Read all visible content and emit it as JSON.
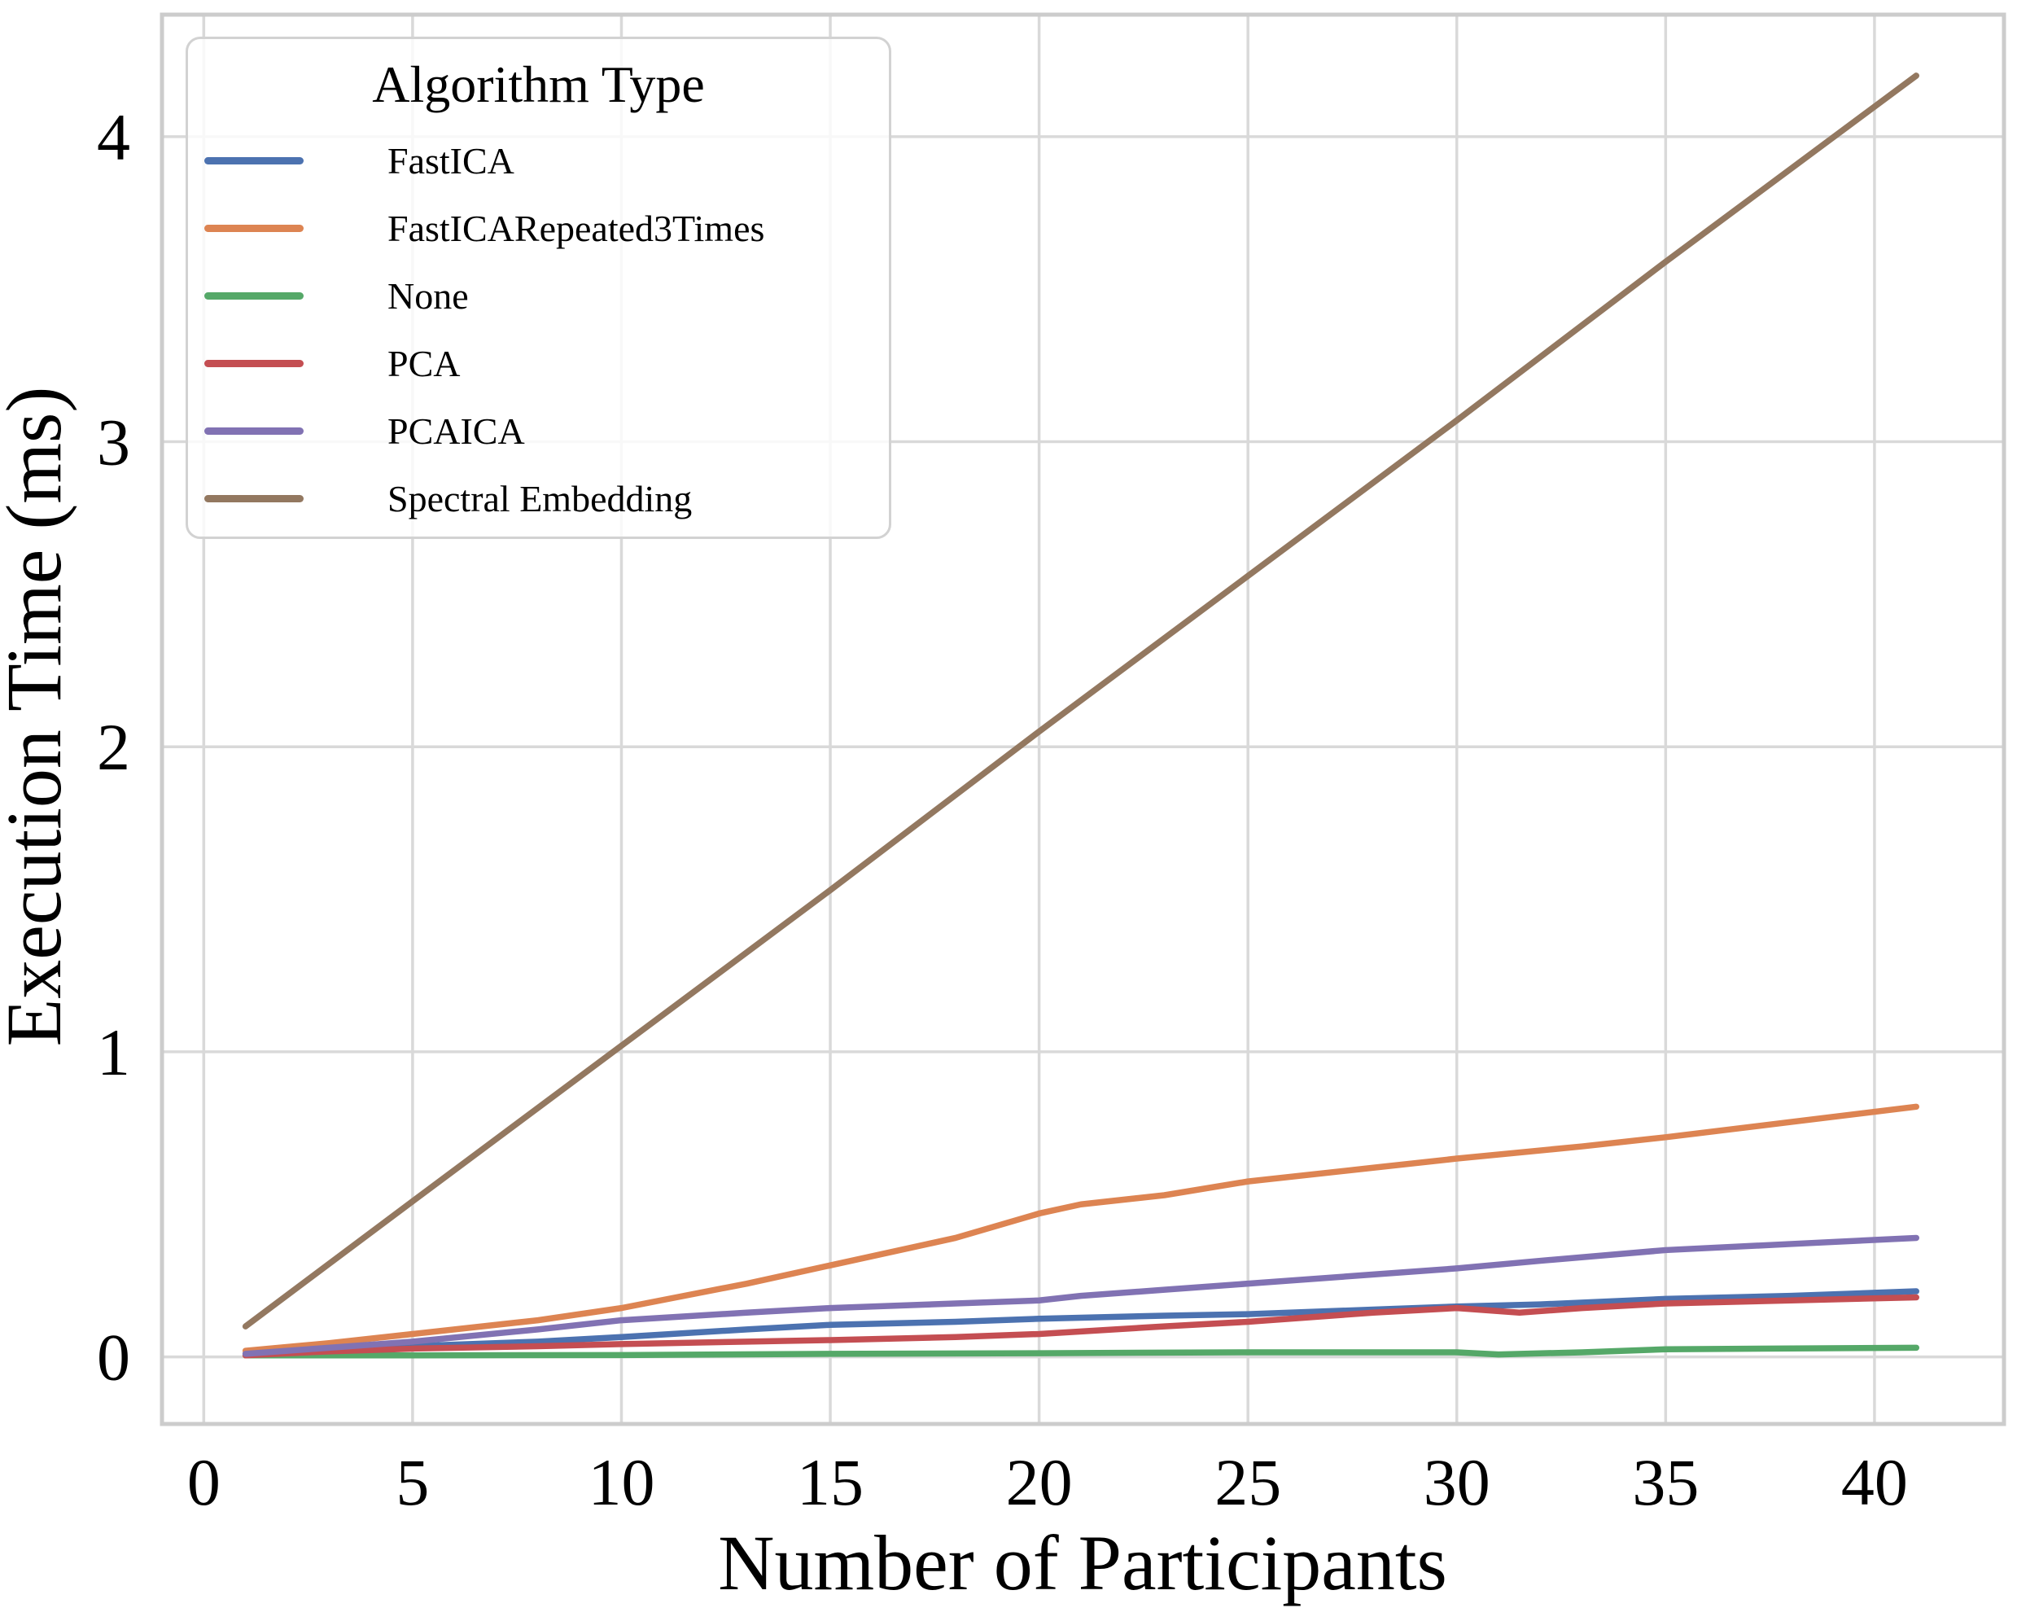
{
  "chart_data": {
    "type": "line",
    "xlabel": "Number of Participants",
    "ylabel": "Execution Time (ms)",
    "legend_title": "Algorithm Type",
    "legend_position": "upper left",
    "grid": true,
    "x_ticks": [
      0,
      5,
      10,
      15,
      20,
      25,
      30,
      35,
      40
    ],
    "y_ticks": [
      0,
      1,
      2,
      3,
      4
    ],
    "xlim": [
      -1,
      43.1
    ],
    "ylim": [
      -0.22,
      4.4
    ],
    "series": [
      {
        "name": "FastICA",
        "color": "#4C72B0",
        "points": [
          [
            1,
            0.01
          ],
          [
            3,
            0.02
          ],
          [
            5,
            0.035
          ],
          [
            8,
            0.05
          ],
          [
            10,
            0.065
          ],
          [
            13,
            0.09
          ],
          [
            15,
            0.105
          ],
          [
            18,
            0.115
          ],
          [
            20,
            0.125
          ],
          [
            23,
            0.135
          ],
          [
            25,
            0.14
          ],
          [
            28,
            0.155
          ],
          [
            30,
            0.165
          ],
          [
            32,
            0.172
          ],
          [
            35,
            0.19
          ],
          [
            38,
            0.2
          ],
          [
            41,
            0.215
          ]
        ]
      },
      {
        "name": "FastICARepeated3Times",
        "color": "#DD8452",
        "points": [
          [
            1,
            0.02
          ],
          [
            3,
            0.045
          ],
          [
            5,
            0.075
          ],
          [
            8,
            0.12
          ],
          [
            10,
            0.16
          ],
          [
            13,
            0.24
          ],
          [
            15,
            0.3
          ],
          [
            18,
            0.39
          ],
          [
            20,
            0.47
          ],
          [
            21,
            0.5
          ],
          [
            23,
            0.53
          ],
          [
            25,
            0.575
          ],
          [
            28,
            0.62
          ],
          [
            30,
            0.65
          ],
          [
            33,
            0.69
          ],
          [
            35,
            0.72
          ],
          [
            38,
            0.77
          ],
          [
            41,
            0.82
          ]
        ]
      },
      {
        "name": "None",
        "color": "#55A868",
        "points": [
          [
            1,
            0.005
          ],
          [
            5,
            0.005
          ],
          [
            10,
            0.006
          ],
          [
            15,
            0.01
          ],
          [
            20,
            0.012
          ],
          [
            25,
            0.015
          ],
          [
            30,
            0.015
          ],
          [
            31,
            0.008
          ],
          [
            33,
            0.015
          ],
          [
            35,
            0.025
          ],
          [
            41,
            0.03
          ]
        ]
      },
      {
        "name": "PCA",
        "color": "#C44E52",
        "points": [
          [
            1,
            0.005
          ],
          [
            3,
            0.018
          ],
          [
            5,
            0.027
          ],
          [
            8,
            0.035
          ],
          [
            10,
            0.042
          ],
          [
            13,
            0.05
          ],
          [
            15,
            0.055
          ],
          [
            18,
            0.065
          ],
          [
            20,
            0.075
          ],
          [
            23,
            0.1
          ],
          [
            25,
            0.115
          ],
          [
            28,
            0.145
          ],
          [
            30,
            0.16
          ],
          [
            31.5,
            0.145
          ],
          [
            33,
            0.16
          ],
          [
            35,
            0.175
          ],
          [
            38,
            0.185
          ],
          [
            41,
            0.195
          ]
        ]
      },
      {
        "name": "PCAICA",
        "color": "#8172B3",
        "points": [
          [
            1,
            0.01
          ],
          [
            3,
            0.03
          ],
          [
            5,
            0.05
          ],
          [
            8,
            0.09
          ],
          [
            10,
            0.12
          ],
          [
            13,
            0.145
          ],
          [
            15,
            0.16
          ],
          [
            18,
            0.175
          ],
          [
            20,
            0.185
          ],
          [
            21,
            0.2
          ],
          [
            23,
            0.22
          ],
          [
            25,
            0.24
          ],
          [
            28,
            0.27
          ],
          [
            30,
            0.29
          ],
          [
            32,
            0.315
          ],
          [
            35,
            0.35
          ],
          [
            38,
            0.37
          ],
          [
            41,
            0.39
          ]
        ]
      },
      {
        "name": "Spectral Embedding",
        "color": "#937860",
        "points": [
          [
            1,
            0.1
          ],
          [
            5,
            0.51
          ],
          [
            10,
            1.02
          ],
          [
            15,
            1.53
          ],
          [
            20,
            2.05
          ],
          [
            25,
            2.56
          ],
          [
            30,
            3.07
          ],
          [
            35,
            3.59
          ],
          [
            41,
            4.2
          ]
        ]
      }
    ],
    "style": {
      "grid_color": "#d9d9d9",
      "spine_color": "#cccccc",
      "text_color": "#000000",
      "background": "#ffffff"
    }
  }
}
